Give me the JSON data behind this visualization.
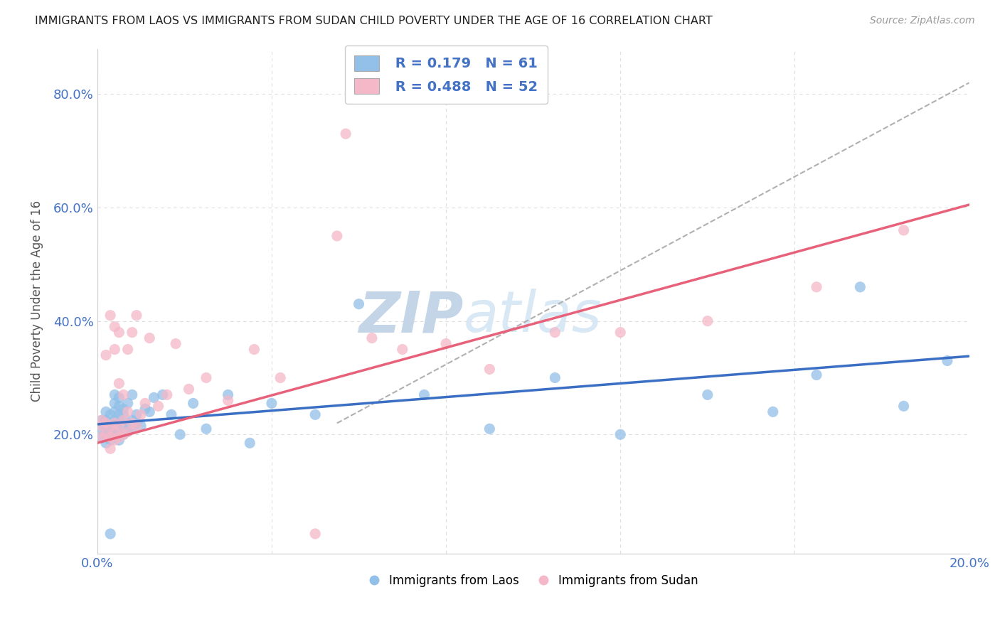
{
  "title": "IMMIGRANTS FROM LAOS VS IMMIGRANTS FROM SUDAN CHILD POVERTY UNDER THE AGE OF 16 CORRELATION CHART",
  "source": "Source: ZipAtlas.com",
  "ylabel": "Child Poverty Under the Age of 16",
  "xlim": [
    0.0,
    0.2
  ],
  "ylim": [
    -0.01,
    0.88
  ],
  "laos_R": 0.179,
  "laos_N": 61,
  "sudan_R": 0.488,
  "sudan_N": 52,
  "laos_color": "#92c0e8",
  "laos_line_color": "#3a6fc4",
  "sudan_color": "#f5b8c8",
  "sudan_line_color": "#e8617a",
  "watermark_zip": "ZIP",
  "watermark_atlas": "atlas",
  "watermark_color": "#d0dff0",
  "background_color": "#ffffff",
  "grid_color": "#dddddd",
  "laos_line_intercept": 0.218,
  "laos_line_slope": 0.6,
  "sudan_line_intercept": 0.185,
  "sudan_line_slope": 2.1,
  "ref_line_x": [
    0.055,
    0.2
  ],
  "ref_line_y": [
    0.22,
    0.82
  ],
  "laos_x": [
    0.001,
    0.001,
    0.001,
    0.002,
    0.002,
    0.002,
    0.002,
    0.002,
    0.003,
    0.003,
    0.003,
    0.003,
    0.003,
    0.004,
    0.004,
    0.004,
    0.004,
    0.004,
    0.004,
    0.005,
    0.005,
    0.005,
    0.005,
    0.005,
    0.005,
    0.006,
    0.006,
    0.006,
    0.006,
    0.007,
    0.007,
    0.007,
    0.008,
    0.008,
    0.008,
    0.009,
    0.009,
    0.01,
    0.011,
    0.012,
    0.013,
    0.015,
    0.017,
    0.019,
    0.022,
    0.025,
    0.03,
    0.035,
    0.04,
    0.05,
    0.06,
    0.075,
    0.09,
    0.105,
    0.12,
    0.14,
    0.155,
    0.165,
    0.175,
    0.185,
    0.195
  ],
  "laos_y": [
    0.195,
    0.21,
    0.225,
    0.185,
    0.2,
    0.215,
    0.225,
    0.24,
    0.19,
    0.205,
    0.22,
    0.235,
    0.025,
    0.195,
    0.21,
    0.225,
    0.24,
    0.255,
    0.27,
    0.19,
    0.205,
    0.22,
    0.235,
    0.25,
    0.265,
    0.2,
    0.215,
    0.235,
    0.245,
    0.205,
    0.22,
    0.255,
    0.21,
    0.225,
    0.27,
    0.22,
    0.235,
    0.215,
    0.245,
    0.24,
    0.265,
    0.27,
    0.235,
    0.2,
    0.255,
    0.21,
    0.27,
    0.185,
    0.255,
    0.235,
    0.43,
    0.27,
    0.21,
    0.3,
    0.2,
    0.27,
    0.24,
    0.305,
    0.46,
    0.25,
    0.33
  ],
  "sudan_x": [
    0.001,
    0.001,
    0.001,
    0.002,
    0.002,
    0.002,
    0.003,
    0.003,
    0.003,
    0.003,
    0.004,
    0.004,
    0.004,
    0.004,
    0.004,
    0.005,
    0.005,
    0.005,
    0.005,
    0.006,
    0.006,
    0.006,
    0.007,
    0.007,
    0.007,
    0.008,
    0.008,
    0.009,
    0.009,
    0.01,
    0.011,
    0.012,
    0.014,
    0.016,
    0.018,
    0.021,
    0.025,
    0.03,
    0.036,
    0.042,
    0.05,
    0.057,
    0.063,
    0.055,
    0.07,
    0.08,
    0.09,
    0.105,
    0.12,
    0.14,
    0.165,
    0.185
  ],
  "sudan_y": [
    0.195,
    0.215,
    0.225,
    0.2,
    0.22,
    0.34,
    0.175,
    0.195,
    0.215,
    0.41,
    0.19,
    0.205,
    0.22,
    0.35,
    0.39,
    0.195,
    0.215,
    0.29,
    0.38,
    0.2,
    0.225,
    0.27,
    0.205,
    0.24,
    0.35,
    0.22,
    0.38,
    0.215,
    0.41,
    0.235,
    0.255,
    0.37,
    0.25,
    0.27,
    0.36,
    0.28,
    0.3,
    0.26,
    0.35,
    0.3,
    0.025,
    0.73,
    0.37,
    0.55,
    0.35,
    0.36,
    0.315,
    0.38,
    0.38,
    0.4,
    0.46,
    0.56
  ]
}
